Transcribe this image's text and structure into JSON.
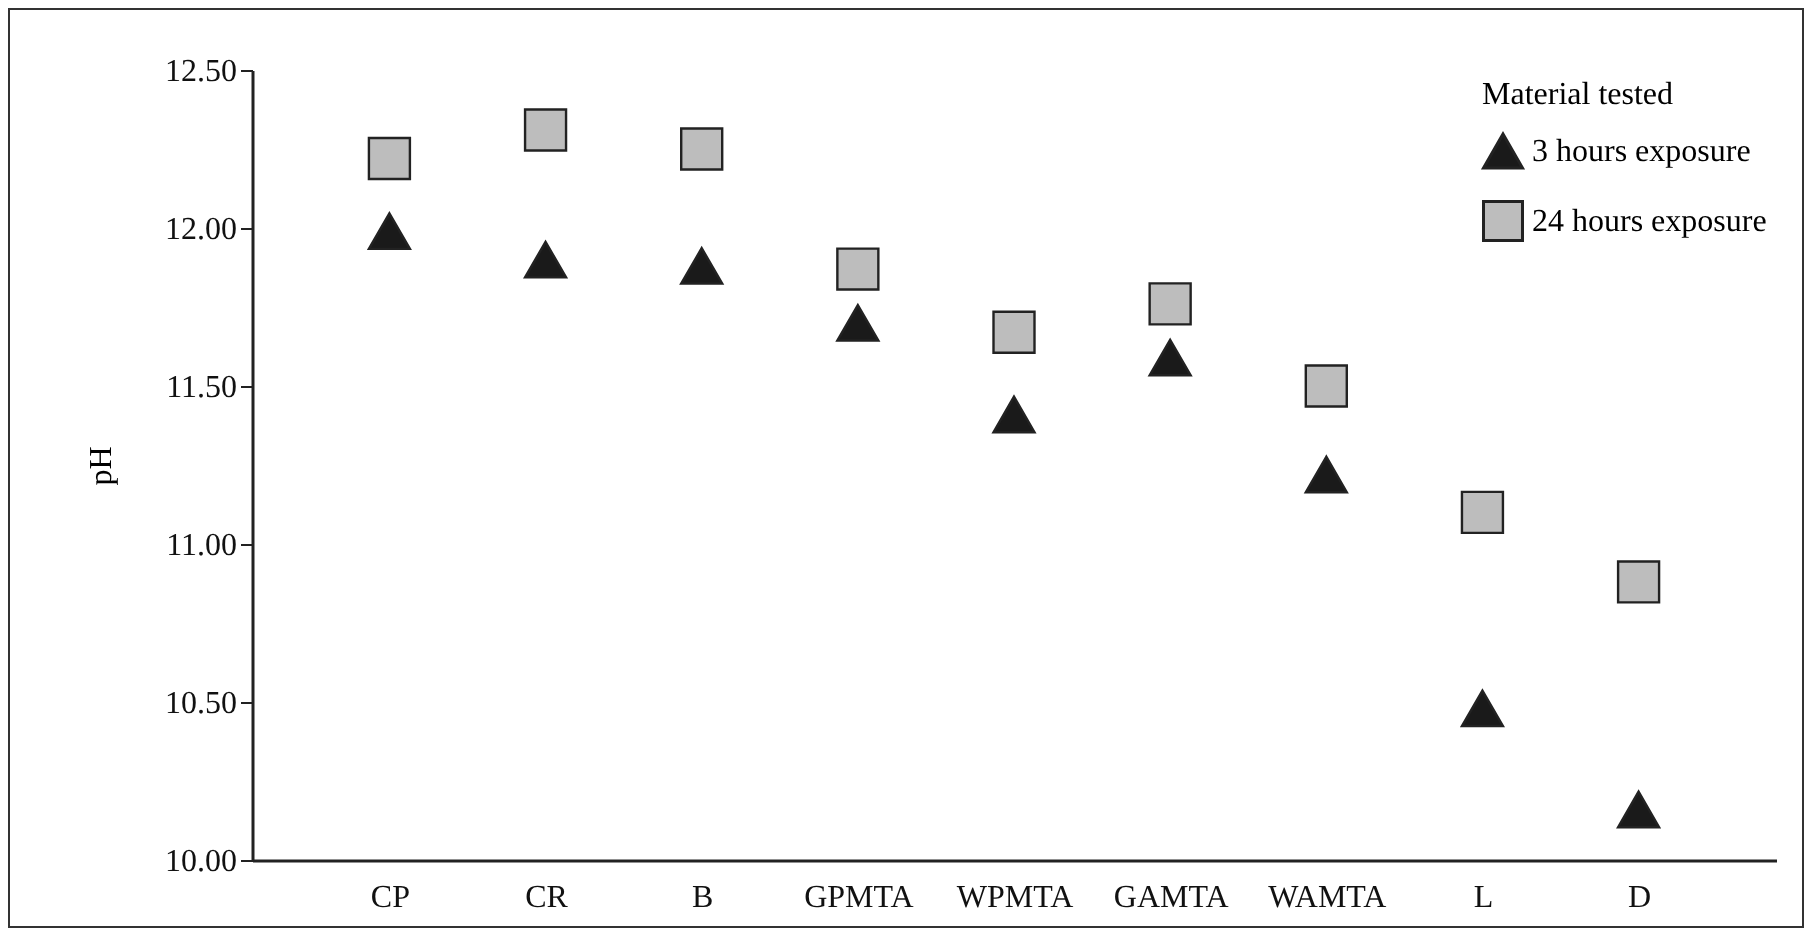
{
  "chart_data": {
    "type": "scatter",
    "ylabel": "pH",
    "legend_title": "Material tested",
    "legend": "top right",
    "categories": [
      "CP",
      "CR",
      "B",
      "GPMTA",
      "WPMTA",
      "GAMTA",
      "WAMTA",
      "L",
      "D"
    ],
    "series": [
      {
        "name": "3 hours exposure",
        "color": "#1a1a1a",
        "marker": "triangle",
        "values": [
          11.99,
          11.9,
          11.88,
          11.7,
          11.41,
          11.59,
          11.22,
          10.48,
          10.16
        ]
      },
      {
        "name": "24 hours exposure",
        "color": "#bdbdbd",
        "marker": "square",
        "values": [
          12.22,
          12.31,
          12.25,
          11.87,
          11.67,
          11.76,
          11.5,
          11.1,
          10.88
        ]
      }
    ],
    "ylim": [
      10,
      12.5
    ],
    "yticks": [
      {
        "value": 10,
        "label": "10.00"
      },
      {
        "value": 10.5,
        "label": "10.50"
      },
      {
        "value": 11,
        "label": "11.00"
      },
      {
        "value": 11.5,
        "label": "11.50"
      },
      {
        "value": 12,
        "label": "12.00"
      },
      {
        "value": 12.5,
        "label": "12.50"
      }
    ]
  }
}
